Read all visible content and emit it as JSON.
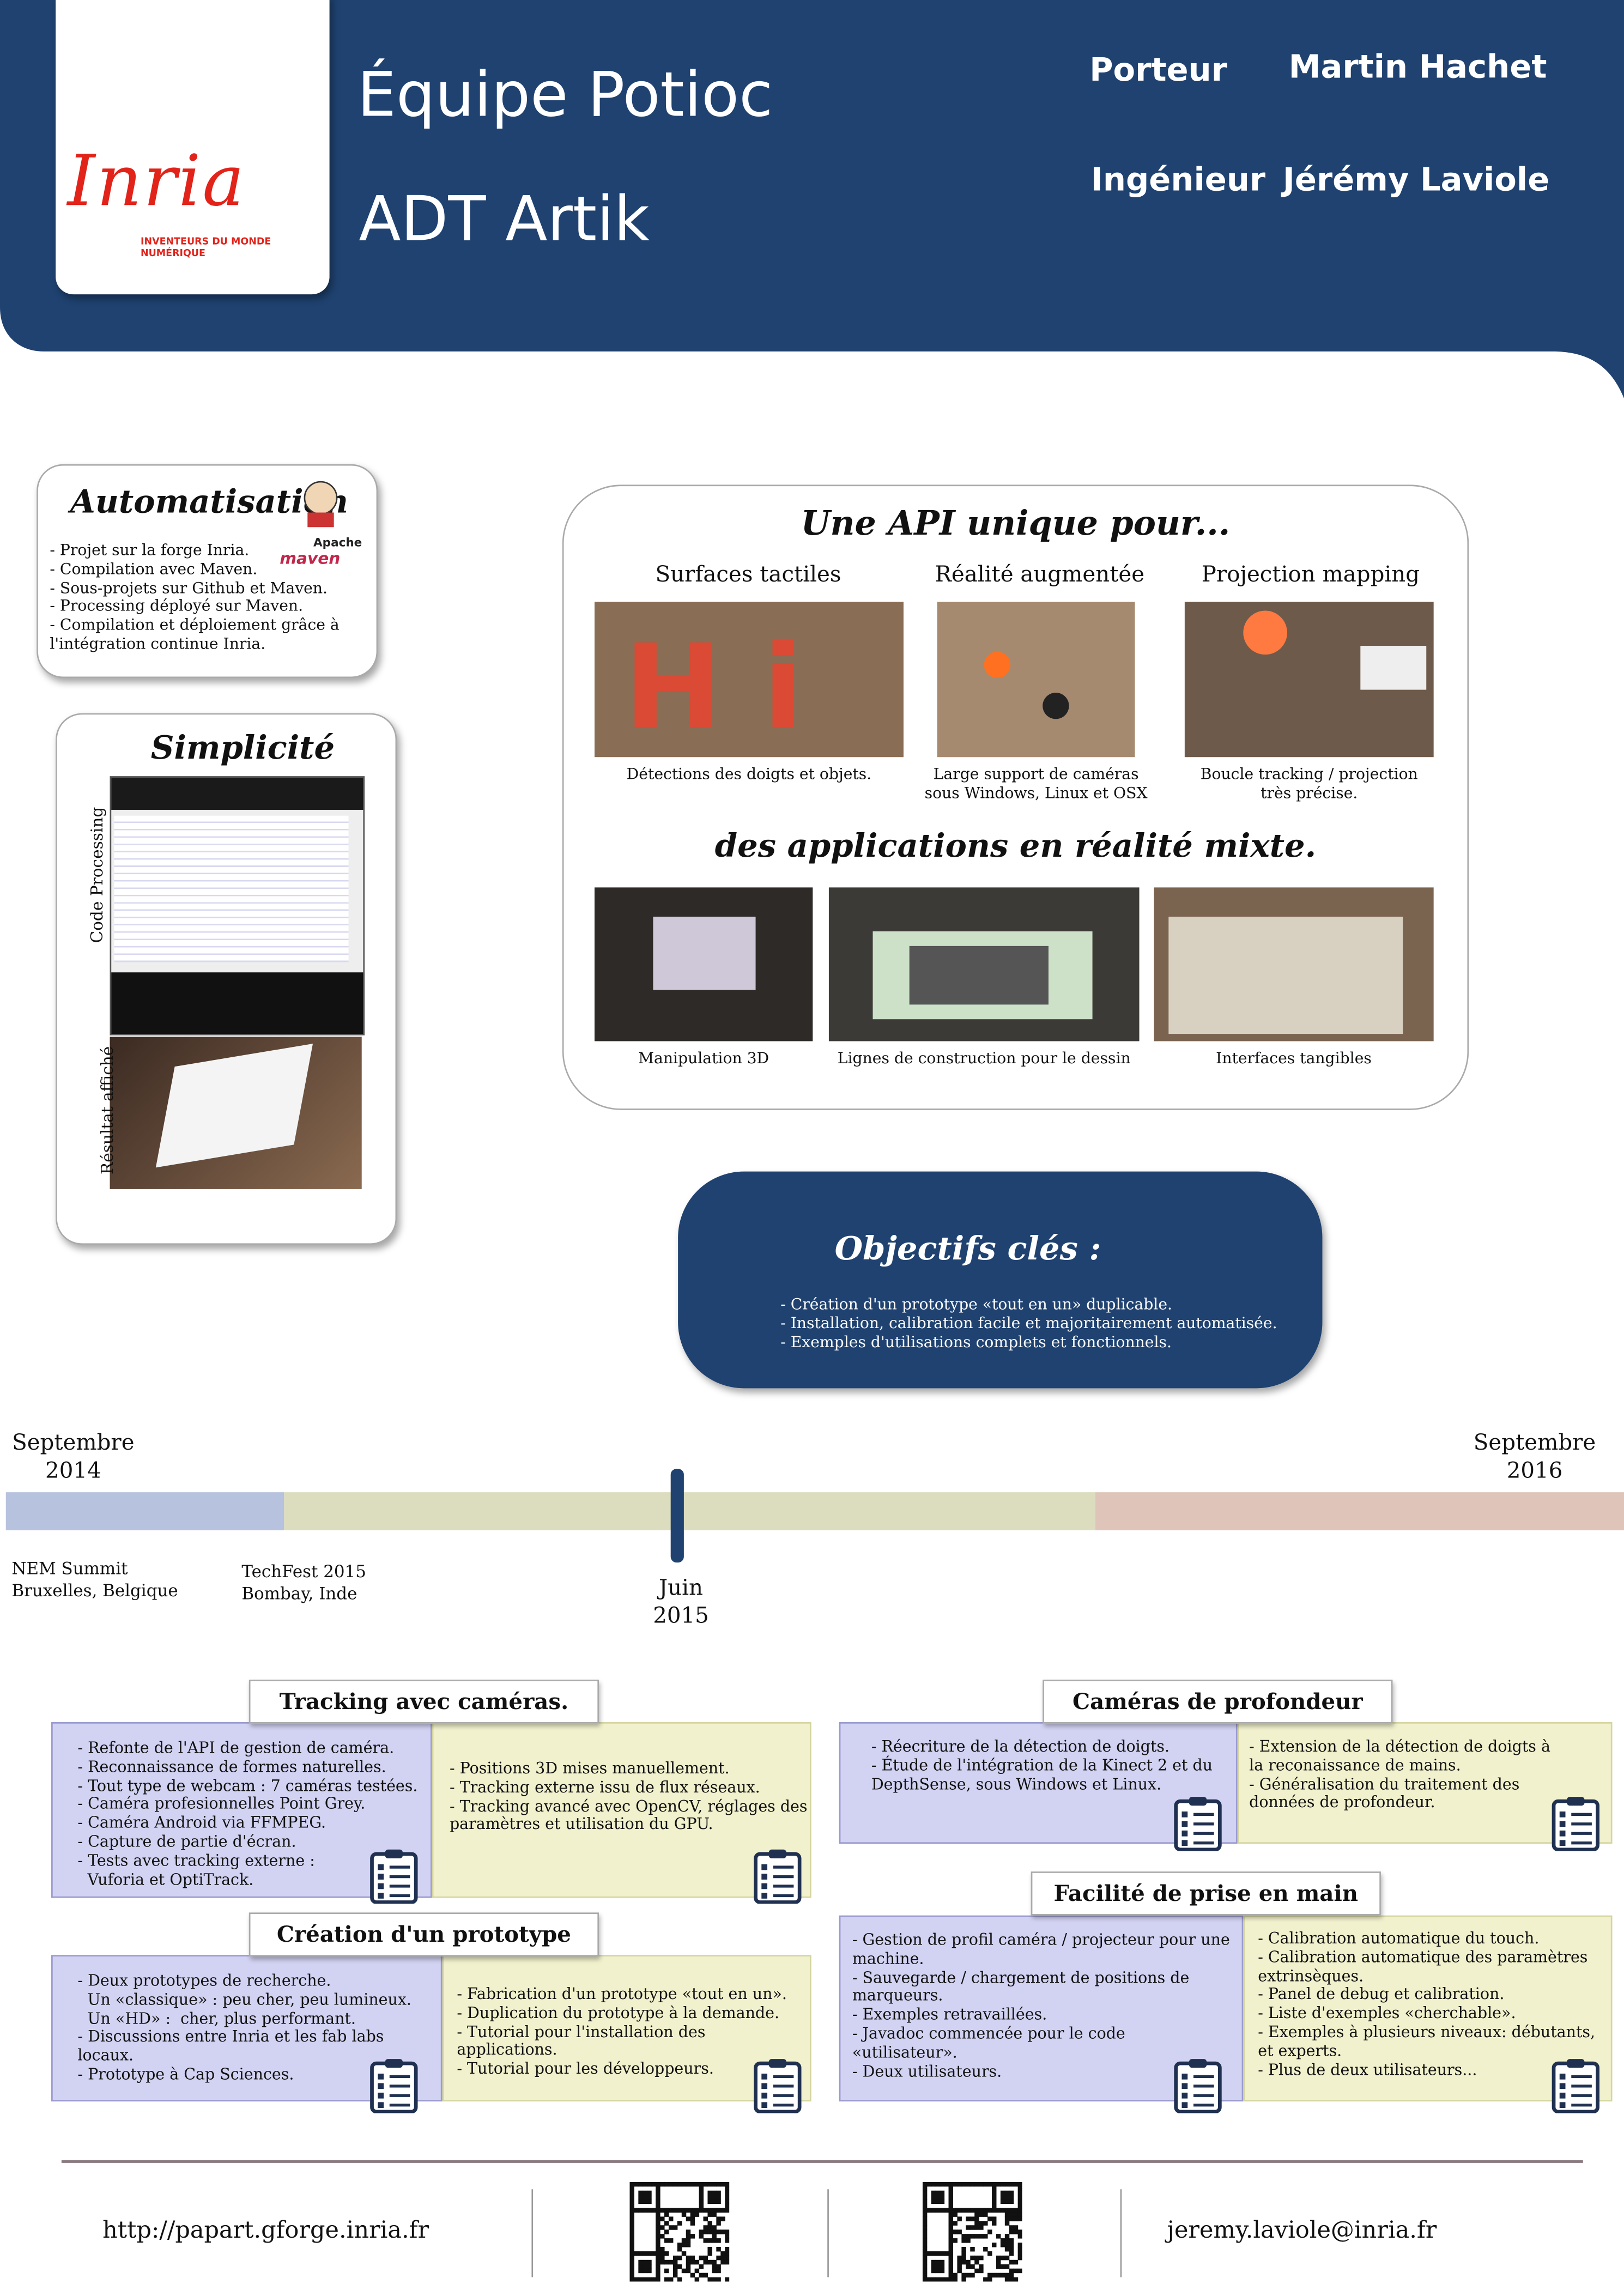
{
  "header": {
    "title": "Équipe Potioc",
    "subtitle": "ADT Artik",
    "logo": "Inria",
    "logo_tagline": "INVENTEURS DU MONDE NUMÉRIQUE",
    "people": [
      {
        "role": "Porteur",
        "name": "Martin Hachet"
      },
      {
        "role": "Ingénieur",
        "name": "Jérémy Laviole"
      }
    ]
  },
  "automatisation": {
    "title": "Automatisation",
    "logo_top": "Apache",
    "logo_bottom": "maven",
    "items": [
      "- Projet sur la forge Inria.",
      "- Compilation avec Maven.",
      "- Sous-projets sur Github et Maven.",
      "- Processing déployé sur Maven.",
      "- Compilation et déploiement grâce à l'intégration continue Inria."
    ]
  },
  "simplicite": {
    "title": "Simplicité",
    "label_code": "Code Processing",
    "label_result": "Résultat affiché"
  },
  "api": {
    "title": "Une API unique pour...",
    "columns": [
      {
        "heading": "Surfaces tactiles",
        "caption": "Détections des doigts et objets."
      },
      {
        "heading": "Réalité augmentée",
        "caption": "Large support de caméras sous Windows, Linux et OSX"
      },
      {
        "heading": "Projection mapping",
        "caption": "Boucle tracking / projection très précise."
      }
    ],
    "subtitle": "des applications en réalité mixte.",
    "apps": [
      "Manipulation 3D",
      "Lignes de construction pour le dessin",
      "Interfaces tangibles"
    ]
  },
  "objectifs": {
    "title": "Objectifs clés :",
    "items": [
      "- Création d'un prototype «tout en un» duplicable.",
      "- Installation, calibration facile et majoritairement automatisée.",
      "- Exemples d'utilisations complets et fonctionnels."
    ]
  },
  "timeline": {
    "start": [
      "Septembre",
      "2014"
    ],
    "end": [
      "Septembre",
      "2016"
    ],
    "milestone": [
      "Juin",
      "2015"
    ],
    "events": [
      [
        "NEM Summit",
        "Bruxelles, Belgique"
      ],
      [
        "TechFest 2015",
        "Bombay, Inde"
      ]
    ]
  },
  "sections": [
    {
      "title": "Tracking avec caméras.",
      "left": [
        "- Refonte de l'API de gestion de caméra.",
        "- Reconnaissance de formes naturelles.",
        "- Tout type de webcam : 7 caméras testées.",
        "- Caméra profesionnelles Point Grey.",
        "- Caméra Android via FFMPEG.",
        "- Capture de partie d'écran.",
        "- Tests avec tracking externe :",
        "  Vuforia et OptiTrack."
      ],
      "right": [
        "- Positions 3D mises manuellement.",
        "- Tracking externe issu de flux réseaux.",
        "- Tracking avancé avec OpenCV, réglages des paramètres et utilisation du GPU."
      ]
    },
    {
      "title": "Création d'un prototype",
      "left": [
        "- Deux prototypes de recherche.",
        "  Un «classique» : peu cher, peu lumineux.",
        "  Un «HD» :  cher, plus performant.",
        "- Discussions entre Inria et les fab labs locaux.",
        "- Prototype à Cap Sciences."
      ],
      "right": [
        "- Fabrication d'un prototype «tout en un».",
        "- Duplication du prototype à la demande.",
        "- Tutorial pour l'installation des applications.",
        "- Tutorial pour les développeurs."
      ]
    },
    {
      "title": "Caméras de profondeur",
      "left": [
        "- Réecriture de la détection de doigts.",
        "- Étude de l'intégration de la Kinect 2 et du DepthSense, sous Windows et Linux."
      ],
      "right": [
        "- Extension de la détection de doigts à la reconaissance de mains.",
        "- Généralisation du traitement des données de profondeur."
      ]
    },
    {
      "title": "Facilité de prise en main",
      "left": [
        "- Gestion de profil caméra / projecteur pour une  machine.",
        "- Sauvegarde / chargement de positions de marqueurs.",
        "- Exemples retravaillées.",
        "- Javadoc commencée pour le code «utilisateur».",
        "- Deux utilisateurs."
      ],
      "right": [
        "- Calibration automatique du touch.",
        "- Calibration automatique des paramètres extrinsèques.",
        "- Panel de debug et calibration.",
        "- Liste d'exemples «cherchable».",
        "- Exemples à plusieurs niveaux: débutants, et experts.",
        "- Plus de deux utilisateurs..."
      ]
    }
  ],
  "footer": {
    "url": "http://papart.gforge.inria.fr",
    "email": "jeremy.laviole@inria.fr"
  }
}
